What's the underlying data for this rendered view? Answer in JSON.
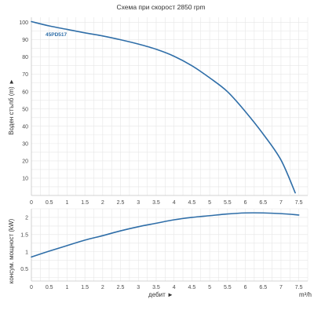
{
  "colors": {
    "curve": "#2f6ea8",
    "series_label": "#2f6ea8",
    "grid": "#e6e6e6",
    "axis": "#c8c8c8",
    "text": "#333333"
  },
  "chart_data": [
    {
      "type": "line",
      "title": "Схема при скорост 2850 rpm",
      "ylabel": "Воден стълб (m) ►",
      "xlim": [
        0,
        7.75
      ],
      "ylim": [
        0,
        103
      ],
      "xticks": [
        0,
        0.5,
        1,
        1.5,
        2,
        2.5,
        3,
        3.5,
        4,
        4.5,
        5,
        5.5,
        6,
        6.5,
        7,
        7.5
      ],
      "yticks": [
        10,
        20,
        30,
        40,
        50,
        60,
        70,
        80,
        90,
        100
      ],
      "grid": true,
      "series": [
        {
          "name": "45PD517",
          "x": [
            0,
            0.5,
            1,
            1.5,
            2,
            2.5,
            3,
            3.5,
            4,
            4.5,
            5,
            5.5,
            6,
            6.5,
            7,
            7.4
          ],
          "y": [
            100.5,
            98,
            96,
            94,
            92.2,
            90,
            87.5,
            84.5,
            80.5,
            75,
            68,
            60,
            48.5,
            35.5,
            20.5,
            1.5
          ]
        }
      ]
    },
    {
      "type": "line",
      "xlabel": "дебит ►",
      "xunit": "m³/h",
      "ylabel": "консум. мощност (kW)",
      "xlim": [
        0,
        7.75
      ],
      "ylim": [
        0.15,
        2.25
      ],
      "xticks": [
        0,
        0.5,
        1,
        1.5,
        2,
        2.5,
        3,
        3.5,
        4,
        4.5,
        5,
        5.5,
        6,
        6.5,
        7,
        7.5
      ],
      "yticks": [
        0.5,
        1,
        1.5,
        2
      ],
      "grid": true,
      "series": [
        {
          "x": [
            0,
            0.5,
            1,
            1.5,
            2,
            2.5,
            3,
            3.5,
            4,
            4.5,
            5,
            5.5,
            6,
            6.5,
            7,
            7.5
          ],
          "y": [
            0.85,
            1.02,
            1.18,
            1.34,
            1.47,
            1.61,
            1.73,
            1.83,
            1.93,
            2.0,
            2.05,
            2.1,
            2.13,
            2.13,
            2.11,
            2.07
          ]
        }
      ]
    }
  ]
}
